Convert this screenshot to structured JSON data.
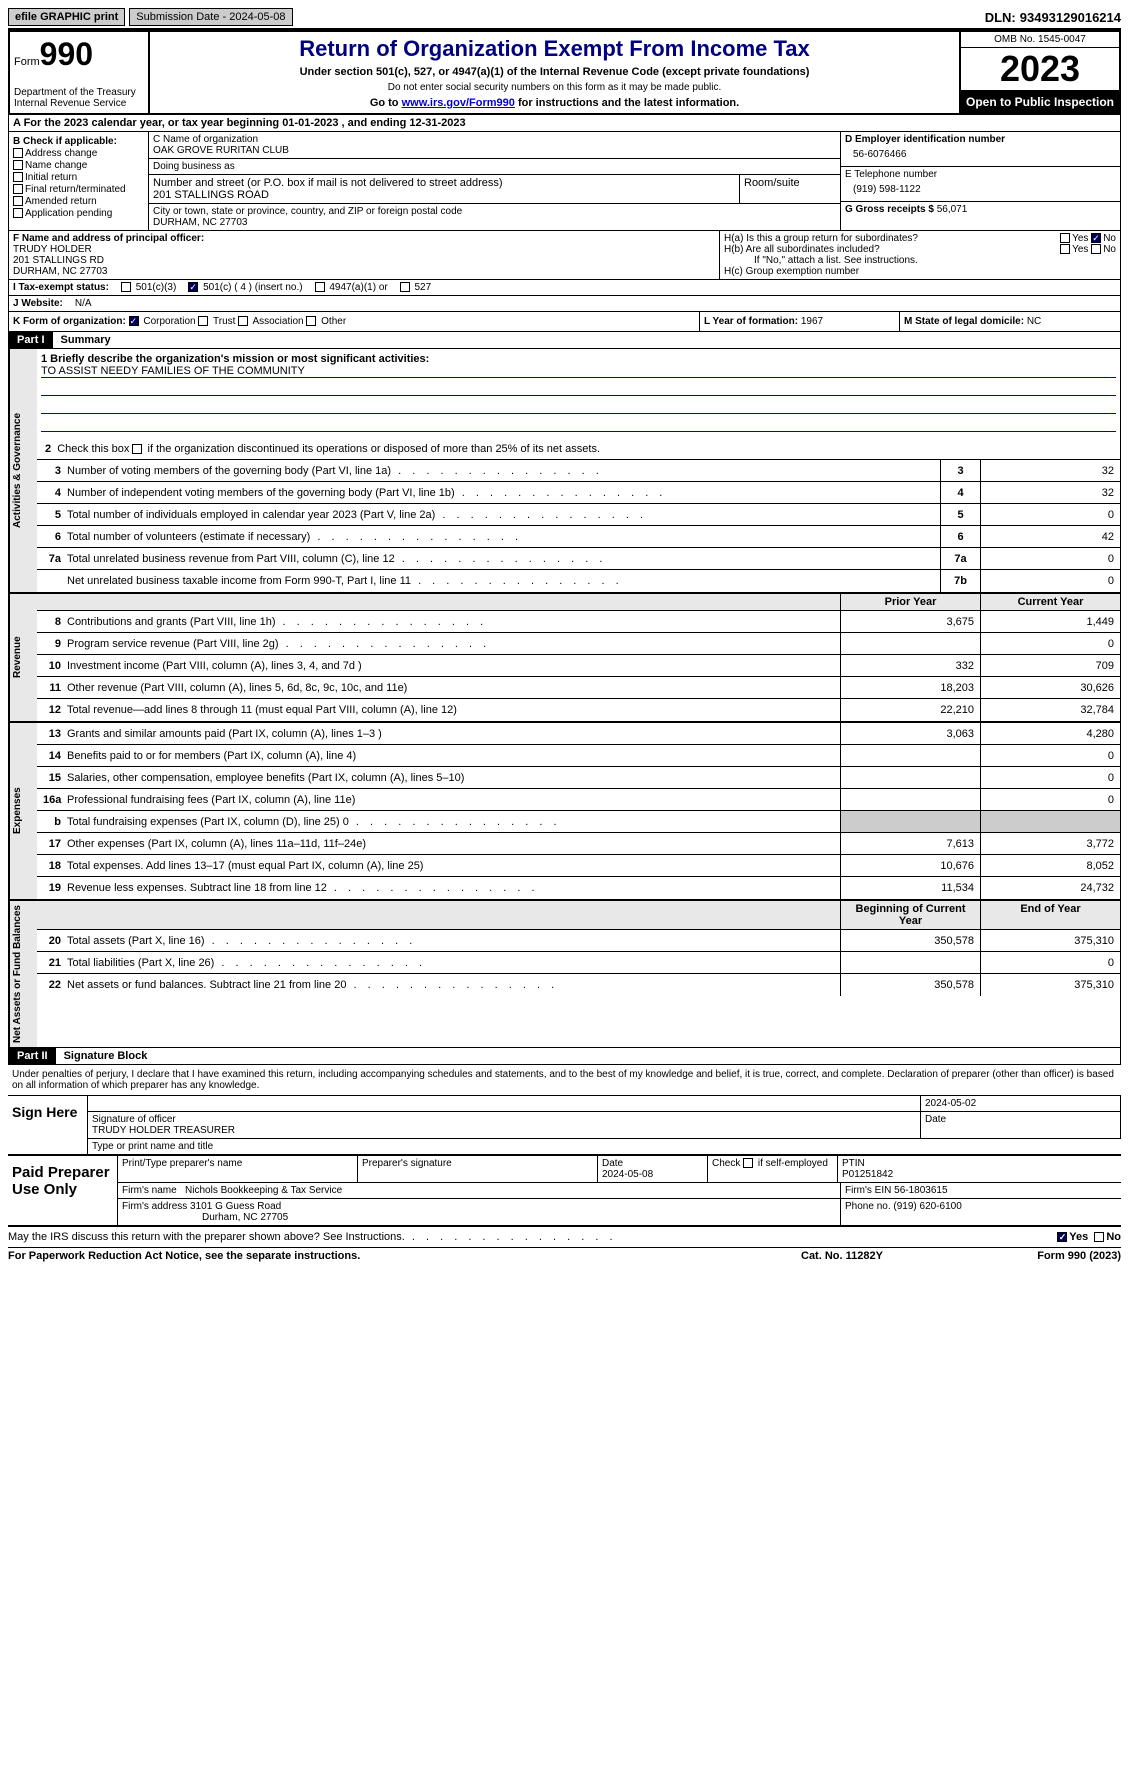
{
  "topbar": {
    "efile": "efile GRAPHIC print",
    "submission": "Submission Date - 2024-05-08",
    "dln_label": "DLN:",
    "dln": "93493129016214"
  },
  "header": {
    "form_prefix": "Form",
    "form_number": "990",
    "title": "Return of Organization Exempt From Income Tax",
    "subtitle": "Under section 501(c), 527, or 4947(a)(1) of the Internal Revenue Code (except private foundations)",
    "note": "Do not enter social security numbers on this form as it may be made public.",
    "goto_prefix": "Go to ",
    "goto_link": "www.irs.gov/Form990",
    "goto_suffix": " for instructions and the latest information.",
    "dept": "Department of the Treasury Internal Revenue Service",
    "omb": "OMB No. 1545-0047",
    "year": "2023",
    "open": "Open to Public Inspection"
  },
  "row_a": "A For the 2023 calendar year, or tax year beginning 01-01-2023    , and ending 12-31-2023",
  "col_b": {
    "label": "B Check if applicable:",
    "opts": [
      "Address change",
      "Name change",
      "Initial return",
      "Final return/terminated",
      "Amended return",
      "Application pending"
    ]
  },
  "col_c": {
    "name_label": "C Name of organization",
    "name": "OAK GROVE RURITAN CLUB",
    "dba_label": "Doing business as",
    "dba": "",
    "street_label": "Number and street (or P.O. box if mail is not delivered to street address)",
    "street": "201 STALLINGS ROAD",
    "room_label": "Room/suite",
    "city_label": "City or town, state or province, country, and ZIP or foreign postal code",
    "city": "DURHAM, NC  27703"
  },
  "col_d": {
    "ein_label": "D Employer identification number",
    "ein": "56-6076466",
    "phone_label": "E Telephone number",
    "phone": "(919) 598-1122",
    "gross_label": "G Gross receipts $",
    "gross": "56,071"
  },
  "f_block": {
    "label": "F Name and address of principal officer:",
    "name": "TRUDY HOLDER",
    "addr1": "201 STALLINGS RD",
    "addr2": "DURHAM, NC  27703"
  },
  "h_block": {
    "ha": "H(a)  Is this a group return for subordinates?",
    "hb": "H(b)  Are all subordinates included?",
    "hb_note": "If \"No,\" attach a list. See instructions.",
    "hc": "H(c)  Group exemption number",
    "yes": "Yes",
    "no": "No"
  },
  "tax_status": {
    "label": "I  Tax-exempt status:",
    "opt1": "501(c)(3)",
    "opt2": "501(c) ( 4 ) (insert no.)",
    "opt3": "4947(a)(1) or",
    "opt4": "527"
  },
  "website": {
    "label": "J  Website:",
    "value": "N/A"
  },
  "k_row": {
    "label": "K Form of organization:",
    "opts": [
      "Corporation",
      "Trust",
      "Association",
      "Other"
    ],
    "l_label": "L Year of formation:",
    "l_val": "1967",
    "m_label": "M State of legal domicile:",
    "m_val": "NC"
  },
  "part1": {
    "num": "Part I",
    "title": "Summary"
  },
  "mission": {
    "label": "1  Briefly describe the organization's mission or most significant activities:",
    "text": "TO ASSIST NEEDY FAMILIES OF THE COMMUNITY"
  },
  "line2": "2  Check this box      if the organization discontinued its operations or disposed of more than 25% of its net assets.",
  "sections": {
    "governance": "Activities & Governance",
    "revenue": "Revenue",
    "expenses": "Expenses",
    "netassets": "Net Assets or Fund Balances"
  },
  "gov_rows": [
    {
      "n": "3",
      "label": "Number of voting members of the governing body (Part VI, line 1a)",
      "box": "3",
      "v": "32"
    },
    {
      "n": "4",
      "label": "Number of independent voting members of the governing body (Part VI, line 1b)",
      "box": "4",
      "v": "32"
    },
    {
      "n": "5",
      "label": "Total number of individuals employed in calendar year 2023 (Part V, line 2a)",
      "box": "5",
      "v": "0"
    },
    {
      "n": "6",
      "label": "Total number of volunteers (estimate if necessary)",
      "box": "6",
      "v": "42"
    },
    {
      "n": "7a",
      "label": "Total unrelated business revenue from Part VIII, column (C), line 12",
      "box": "7a",
      "v": "0"
    },
    {
      "n": "",
      "label": "Net unrelated business taxable income from Form 990-T, Part I, line 11",
      "box": "7b",
      "v": "0"
    }
  ],
  "col_headers": {
    "prior": "Prior Year",
    "current": "Current Year"
  },
  "rev_rows": [
    {
      "n": "8",
      "label": "Contributions and grants (Part VIII, line 1h)",
      "p": "3,675",
      "c": "1,449"
    },
    {
      "n": "9",
      "label": "Program service revenue (Part VIII, line 2g)",
      "p": "",
      "c": "0"
    },
    {
      "n": "10",
      "label": "Investment income (Part VIII, column (A), lines 3, 4, and 7d )",
      "p": "332",
      "c": "709"
    },
    {
      "n": "11",
      "label": "Other revenue (Part VIII, column (A), lines 5, 6d, 8c, 9c, 10c, and 11e)",
      "p": "18,203",
      "c": "30,626"
    },
    {
      "n": "12",
      "label": "Total revenue—add lines 8 through 11 (must equal Part VIII, column (A), line 12)",
      "p": "22,210",
      "c": "32,784"
    }
  ],
  "exp_rows": [
    {
      "n": "13",
      "label": "Grants and similar amounts paid (Part IX, column (A), lines 1–3 )",
      "p": "3,063",
      "c": "4,280"
    },
    {
      "n": "14",
      "label": "Benefits paid to or for members (Part IX, column (A), line 4)",
      "p": "",
      "c": "0"
    },
    {
      "n": "15",
      "label": "Salaries, other compensation, employee benefits (Part IX, column (A), lines 5–10)",
      "p": "",
      "c": "0"
    },
    {
      "n": "16a",
      "label": "Professional fundraising fees (Part IX, column (A), line 11e)",
      "p": "",
      "c": "0"
    },
    {
      "n": "b",
      "label": "Total fundraising expenses (Part IX, column (D), line 25) 0",
      "p": "shaded",
      "c": "shaded"
    },
    {
      "n": "17",
      "label": "Other expenses (Part IX, column (A), lines 11a–11d, 11f–24e)",
      "p": "7,613",
      "c": "3,772"
    },
    {
      "n": "18",
      "label": "Total expenses. Add lines 13–17 (must equal Part IX, column (A), line 25)",
      "p": "10,676",
      "c": "8,052"
    },
    {
      "n": "19",
      "label": "Revenue less expenses. Subtract line 18 from line 12",
      "p": "11,534",
      "c": "24,732"
    }
  ],
  "na_headers": {
    "begin": "Beginning of Current Year",
    "end": "End of Year"
  },
  "na_rows": [
    {
      "n": "20",
      "label": "Total assets (Part X, line 16)",
      "p": "350,578",
      "c": "375,310"
    },
    {
      "n": "21",
      "label": "Total liabilities (Part X, line 26)",
      "p": "",
      "c": "0"
    },
    {
      "n": "22",
      "label": "Net assets or fund balances. Subtract line 21 from line 20",
      "p": "350,578",
      "c": "375,310"
    }
  ],
  "part2": {
    "num": "Part II",
    "title": "Signature Block"
  },
  "sig_intro": "Under penalties of perjury, I declare that I have examined this return, including accompanying schedules and statements, and to the best of my knowledge and belief, it is true, correct, and complete. Declaration of preparer (other than officer) is based on all information of which preparer has any knowledge.",
  "sign": {
    "label": "Sign Here",
    "sig_label": "Signature of officer",
    "officer": "TRUDY HOLDER  TREASURER",
    "type_label": "Type or print name and title",
    "date_label": "Date",
    "date": "2024-05-02"
  },
  "paid": {
    "label": "Paid Preparer Use Only",
    "h1": "Print/Type preparer's name",
    "h2": "Preparer's signature",
    "h3_label": "Date",
    "h3": "2024-05-08",
    "h4": "Check      if self-employed",
    "h5_label": "PTIN",
    "h5": "P01251842",
    "firm_label": "Firm's name",
    "firm": "Nichols Bookkeeping & Tax Service",
    "ein_label": "Firm's EIN",
    "ein": "56-1803615",
    "addr_label": "Firm's address",
    "addr1": "3101 G Guess Road",
    "addr2": "Durham, NC  27705",
    "phone_label": "Phone no.",
    "phone": "(919) 620-6100"
  },
  "discuss": {
    "q": "May the IRS discuss this return with the preparer shown above? See Instructions.",
    "yes": "Yes",
    "no": "No"
  },
  "footer": {
    "paperwork": "For Paperwork Reduction Act Notice, see the separate instructions.",
    "cat": "Cat. No. 11282Y",
    "form": "Form 990 (2023)"
  }
}
